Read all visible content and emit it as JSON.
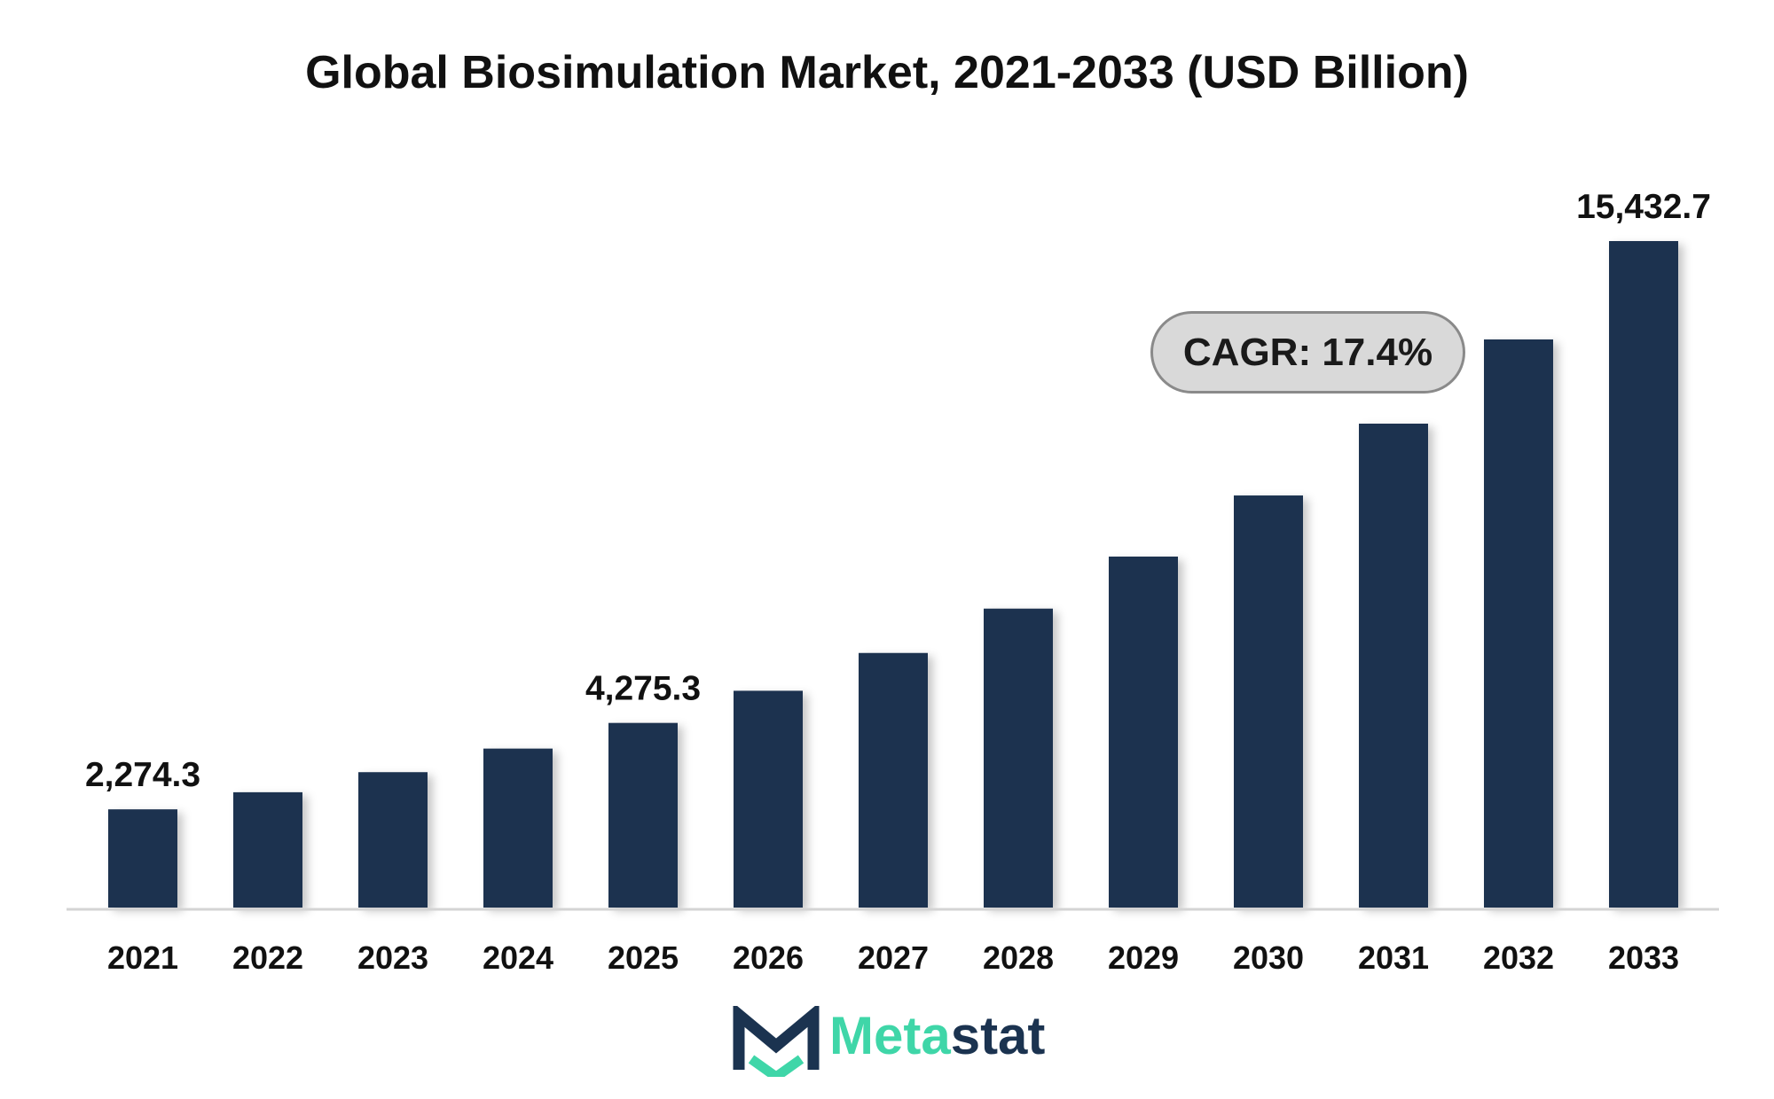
{
  "chart_data": {
    "type": "bar",
    "title": "Global Biosimulation Market, 2021-2033 (USD Billion)",
    "categories": [
      "2021",
      "2022",
      "2023",
      "2024",
      "2025",
      "2026",
      "2027",
      "2028",
      "2029",
      "2030",
      "2031",
      "2032",
      "2033"
    ],
    "values": [
      2274.3,
      2670,
      3135,
      3681,
      4275.3,
      5020,
      5895,
      6922,
      8127,
      9542,
      11205,
      13155,
      15432.7
    ],
    "data_labels": [
      {
        "category": "2021",
        "text": "2,274.3"
      },
      {
        "category": "2025",
        "text": "4,275.3"
      },
      {
        "category": "2033",
        "text": "15,432.7"
      }
    ],
    "annotation": "CAGR: 17.4%",
    "ylim": [
      0,
      15432.7
    ],
    "grid": false,
    "bar_color": "#1b3350",
    "baseline_color": "#d4d4d4"
  },
  "brand": {
    "name_part_a": "Meta",
    "name_part_b": "stat",
    "colors": {
      "green": "#3fd6a8",
      "navy": "#1b3350"
    }
  }
}
